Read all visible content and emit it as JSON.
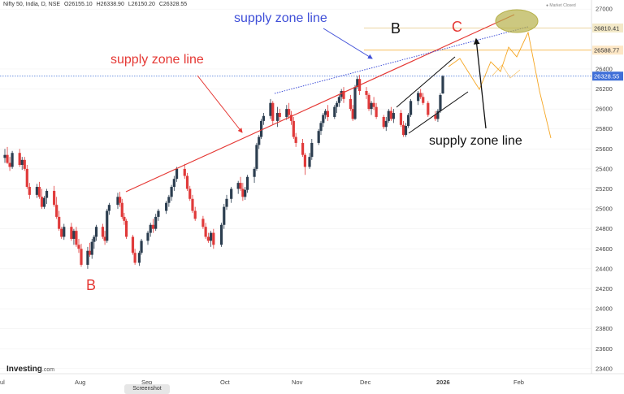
{
  "header": {
    "symbol": "Nifty 50, India, D, NSE",
    "open": "O26155.10",
    "high": "H26338.90",
    "low": "L26150.20",
    "close": "C26328.55"
  },
  "market_status": "Market Closed",
  "branding": {
    "logo": "Investing",
    "logo_suffix": ".com"
  },
  "screenshot_label": "Screenshot",
  "colors": {
    "up": "#2c3e50",
    "down": "#e03a3a",
    "red_line": "#e53935",
    "blue_dots": "#3f4fd8",
    "orange": "#f5a623",
    "arrow_black": "#111111",
    "ellipse": "#b6b04a",
    "grid": "#eeeeee"
  },
  "annotations": {
    "supply_top": "supply zone line",
    "supply_mid": "supply zone line",
    "supply_right": "supply zone line",
    "label_b_left": "B",
    "label_b_top": "B",
    "label_c": "C"
  },
  "chart_data": {
    "type": "candlestick",
    "x_labels": [
      "ul",
      "Aug",
      "Sep",
      "Oct",
      "Nov",
      "Dec",
      "2026",
      "Feb"
    ],
    "y_ticks": [
      23400,
      23600,
      23800,
      24000,
      24200,
      24400,
      24600,
      24800,
      25000,
      25200,
      25400,
      25600,
      25800,
      26000,
      26200,
      26400,
      27000
    ],
    "ylim": [
      23350,
      27050
    ],
    "price_tags": [
      {
        "label": "26810.41",
        "value": 26810.41,
        "style": "light"
      },
      {
        "label": "26588.77",
        "value": 26588.77,
        "style": "orange"
      },
      {
        "label": "26328.55",
        "value": 26328.55,
        "style": "blue"
      }
    ],
    "candles": [
      {
        "date": "Jul-01",
        "o": 25510,
        "h": 25600,
        "l": 25460,
        "c": 25540
      },
      {
        "date": "Jul-02",
        "o": 25540,
        "h": 25620,
        "l": 25450,
        "c": 25460
      },
      {
        "date": "Jul-03",
        "o": 25460,
        "h": 25520,
        "l": 25380,
        "c": 25420
      },
      {
        "date": "Jul-04",
        "o": 25420,
        "h": 25580,
        "l": 25400,
        "c": 25560
      },
      {
        "date": "Jul-07",
        "o": 25560,
        "h": 25600,
        "l": 25420,
        "c": 25440
      },
      {
        "date": "Jul-08",
        "o": 25440,
        "h": 25520,
        "l": 25390,
        "c": 25490
      },
      {
        "date": "Jul-09",
        "o": 25490,
        "h": 25520,
        "l": 25380,
        "c": 25400
      },
      {
        "date": "Jul-10",
        "o": 25400,
        "h": 25440,
        "l": 25200,
        "c": 25220
      },
      {
        "date": "Jul-11",
        "o": 25220,
        "h": 25260,
        "l": 25100,
        "c": 25140
      },
      {
        "date": "Jul-14",
        "o": 25140,
        "h": 25250,
        "l": 25110,
        "c": 25220
      },
      {
        "date": "Jul-15",
        "o": 25220,
        "h": 25270,
        "l": 25100,
        "c": 25120
      },
      {
        "date": "Jul-16",
        "o": 25120,
        "h": 25200,
        "l": 25000,
        "c": 25020
      },
      {
        "date": "Jul-17",
        "o": 25020,
        "h": 25130,
        "l": 25000,
        "c": 25110
      },
      {
        "date": "Jul-18",
        "o": 25110,
        "h": 25200,
        "l": 25050,
        "c": 25180
      },
      {
        "date": "Jul-21",
        "o": 25180,
        "h": 25230,
        "l": 25020,
        "c": 25040
      },
      {
        "date": "Jul-22",
        "o": 25040,
        "h": 25120,
        "l": 24900,
        "c": 24920
      },
      {
        "date": "Jul-23",
        "o": 24920,
        "h": 24980,
        "l": 24780,
        "c": 24800
      },
      {
        "date": "Jul-24",
        "o": 24800,
        "h": 24820,
        "l": 24700,
        "c": 24720
      },
      {
        "date": "Jul-25",
        "o": 24720,
        "h": 24850,
        "l": 24690,
        "c": 24820
      },
      {
        "date": "Jul-28",
        "o": 24820,
        "h": 24860,
        "l": 24680,
        "c": 24700
      },
      {
        "date": "Jul-29",
        "o": 24700,
        "h": 24800,
        "l": 24640,
        "c": 24780
      },
      {
        "date": "Jul-30",
        "o": 24780,
        "h": 24820,
        "l": 24620,
        "c": 24640
      },
      {
        "date": "Jul-31",
        "o": 24640,
        "h": 24700,
        "l": 24560,
        "c": 24600
      },
      {
        "date": "Aug-01",
        "o": 24600,
        "h": 24650,
        "l": 24420,
        "c": 24440
      },
      {
        "date": "Aug-04",
        "o": 24440,
        "h": 24620,
        "l": 24400,
        "c": 24580
      },
      {
        "date": "Aug-05",
        "o": 24580,
        "h": 24660,
        "l": 24520,
        "c": 24540
      },
      {
        "date": "Aug-06",
        "o": 24540,
        "h": 24700,
        "l": 24500,
        "c": 24670
      },
      {
        "date": "Aug-07",
        "o": 24670,
        "h": 24740,
        "l": 24600,
        "c": 24720
      },
      {
        "date": "Aug-08",
        "o": 24720,
        "h": 24840,
        "l": 24680,
        "c": 24820
      },
      {
        "date": "Aug-11",
        "o": 24820,
        "h": 24850,
        "l": 24700,
        "c": 24720
      },
      {
        "date": "Aug-12",
        "o": 24720,
        "h": 24780,
        "l": 24640,
        "c": 24680
      },
      {
        "date": "Aug-13",
        "o": 24680,
        "h": 25000,
        "l": 24660,
        "c": 24980
      },
      {
        "date": "Aug-14",
        "o": 24980,
        "h": 25060,
        "l": 24940,
        "c": 25040
      },
      {
        "date": "Aug-18",
        "o": 25040,
        "h": 25160,
        "l": 25000,
        "c": 25120
      },
      {
        "date": "Aug-19",
        "o": 25120,
        "h": 25170,
        "l": 25020,
        "c": 25060
      },
      {
        "date": "Aug-20",
        "o": 25060,
        "h": 25100,
        "l": 24900,
        "c": 24920
      },
      {
        "date": "Aug-21",
        "o": 24920,
        "h": 24960,
        "l": 24840,
        "c": 24880
      },
      {
        "date": "Aug-22",
        "o": 24880,
        "h": 24900,
        "l": 24700,
        "c": 24720
      },
      {
        "date": "Aug-25",
        "o": 24720,
        "h": 24740,
        "l": 24540,
        "c": 24560
      },
      {
        "date": "Aug-26",
        "o": 24560,
        "h": 24600,
        "l": 24440,
        "c": 24460
      },
      {
        "date": "Aug-28",
        "o": 24460,
        "h": 24580,
        "l": 24430,
        "c": 24560
      },
      {
        "date": "Aug-29",
        "o": 24560,
        "h": 24700,
        "l": 24540,
        "c": 24680
      },
      {
        "date": "Sep-01",
        "o": 24680,
        "h": 24780,
        "l": 24640,
        "c": 24760
      },
      {
        "date": "Sep-02",
        "o": 24760,
        "h": 24860,
        "l": 24720,
        "c": 24840
      },
      {
        "date": "Sep-03",
        "o": 24840,
        "h": 24900,
        "l": 24760,
        "c": 24800
      },
      {
        "date": "Sep-04",
        "o": 24800,
        "h": 24950,
        "l": 24780,
        "c": 24920
      },
      {
        "date": "Sep-05",
        "o": 24920,
        "h": 25000,
        "l": 24880,
        "c": 24980
      },
      {
        "date": "Sep-08",
        "o": 24980,
        "h": 25080,
        "l": 24950,
        "c": 25060
      },
      {
        "date": "Sep-09",
        "o": 25060,
        "h": 25140,
        "l": 25020,
        "c": 25120
      },
      {
        "date": "Sep-10",
        "o": 25120,
        "h": 25240,
        "l": 25080,
        "c": 25220
      },
      {
        "date": "Sep-11",
        "o": 25220,
        "h": 25330,
        "l": 25180,
        "c": 25300
      },
      {
        "date": "Sep-12",
        "o": 25300,
        "h": 25420,
        "l": 25270,
        "c": 25400
      },
      {
        "date": "Sep-15",
        "o": 25400,
        "h": 25450,
        "l": 25300,
        "c": 25330
      },
      {
        "date": "Sep-16",
        "o": 25330,
        "h": 25360,
        "l": 25180,
        "c": 25200
      },
      {
        "date": "Sep-17",
        "o": 25200,
        "h": 25230,
        "l": 25080,
        "c": 25100
      },
      {
        "date": "Sep-18",
        "o": 25100,
        "h": 25140,
        "l": 24960,
        "c": 24980
      },
      {
        "date": "Sep-19",
        "o": 24980,
        "h": 25020,
        "l": 24880,
        "c": 24900
      },
      {
        "date": "Sep-22",
        "o": 24900,
        "h": 24930,
        "l": 24800,
        "c": 24820
      },
      {
        "date": "Sep-23",
        "o": 24820,
        "h": 24860,
        "l": 24700,
        "c": 24720
      },
      {
        "date": "Sep-24",
        "o": 24720,
        "h": 24760,
        "l": 24660,
        "c": 24680
      },
      {
        "date": "Sep-25",
        "o": 24680,
        "h": 24780,
        "l": 24620,
        "c": 24760
      },
      {
        "date": "Sep-26",
        "o": 24760,
        "h": 24800,
        "l": 24600,
        "c": 24640
      },
      {
        "date": "Sep-29",
        "o": 24640,
        "h": 24860,
        "l": 24620,
        "c": 24840
      },
      {
        "date": "Sep-30",
        "o": 24840,
        "h": 25050,
        "l": 24800,
        "c": 25020
      },
      {
        "date": "Oct-01",
        "o": 25020,
        "h": 25140,
        "l": 24990,
        "c": 25100
      },
      {
        "date": "Oct-03",
        "o": 25100,
        "h": 25220,
        "l": 25060,
        "c": 25200
      },
      {
        "date": "Oct-06",
        "o": 25200,
        "h": 25280,
        "l": 25150,
        "c": 25260
      },
      {
        "date": "Oct-07",
        "o": 25260,
        "h": 25320,
        "l": 25180,
        "c": 25200
      },
      {
        "date": "Oct-08",
        "o": 25200,
        "h": 25260,
        "l": 25080,
        "c": 25120
      },
      {
        "date": "Oct-09",
        "o": 25120,
        "h": 25220,
        "l": 25090,
        "c": 25190
      },
      {
        "date": "Oct-10",
        "o": 25190,
        "h": 25340,
        "l": 25160,
        "c": 25320
      },
      {
        "date": "Oct-13",
        "o": 25320,
        "h": 25420,
        "l": 25260,
        "c": 25400
      },
      {
        "date": "Oct-14",
        "o": 25400,
        "h": 25660,
        "l": 25380,
        "c": 25640
      },
      {
        "date": "Oct-15",
        "o": 25640,
        "h": 25740,
        "l": 25600,
        "c": 25720
      },
      {
        "date": "Oct-16",
        "o": 25720,
        "h": 25900,
        "l": 25700,
        "c": 25880
      },
      {
        "date": "Oct-17",
        "o": 25880,
        "h": 25960,
        "l": 25840,
        "c": 25930
      },
      {
        "date": "Oct-20",
        "o": 25930,
        "h": 26100,
        "l": 25900,
        "c": 26060
      },
      {
        "date": "Oct-21",
        "o": 26060,
        "h": 26080,
        "l": 25840,
        "c": 25880
      },
      {
        "date": "Oct-23",
        "o": 25880,
        "h": 26020,
        "l": 25820,
        "c": 25960
      },
      {
        "date": "Oct-24",
        "o": 25960,
        "h": 26000,
        "l": 25880,
        "c": 25920
      },
      {
        "date": "Oct-27",
        "o": 25920,
        "h": 26040,
        "l": 25890,
        "c": 26000
      },
      {
        "date": "Oct-28",
        "o": 26000,
        "h": 26060,
        "l": 25900,
        "c": 25940
      },
      {
        "date": "Oct-29",
        "o": 25940,
        "h": 25980,
        "l": 25840,
        "c": 25880
      },
      {
        "date": "Oct-30",
        "o": 25880,
        "h": 25920,
        "l": 25700,
        "c": 25720
      },
      {
        "date": "Oct-31",
        "o": 25720,
        "h": 25760,
        "l": 25620,
        "c": 25660
      },
      {
        "date": "Nov-03",
        "o": 25660,
        "h": 25700,
        "l": 25520,
        "c": 25540
      },
      {
        "date": "Nov-04",
        "o": 25540,
        "h": 25560,
        "l": 25340,
        "c": 25420
      },
      {
        "date": "Nov-06",
        "o": 25420,
        "h": 25560,
        "l": 25400,
        "c": 25520
      },
      {
        "date": "Nov-07",
        "o": 25520,
        "h": 25700,
        "l": 25490,
        "c": 25660
      },
      {
        "date": "Nov-10",
        "o": 25660,
        "h": 25800,
        "l": 25640,
        "c": 25780
      },
      {
        "date": "Nov-11",
        "o": 25780,
        "h": 25880,
        "l": 25740,
        "c": 25860
      },
      {
        "date": "Nov-12",
        "o": 25860,
        "h": 25960,
        "l": 25820,
        "c": 25940
      },
      {
        "date": "Nov-13",
        "o": 25940,
        "h": 26000,
        "l": 25900,
        "c": 25980
      },
      {
        "date": "Nov-14",
        "o": 25980,
        "h": 26040,
        "l": 25880,
        "c": 25920
      },
      {
        "date": "Nov-17",
        "o": 25920,
        "h": 26040,
        "l": 25900,
        "c": 26020
      },
      {
        "date": "Nov-18",
        "o": 26020,
        "h": 26080,
        "l": 25960,
        "c": 26060
      },
      {
        "date": "Nov-19",
        "o": 26060,
        "h": 26140,
        "l": 26020,
        "c": 26120
      },
      {
        "date": "Nov-20",
        "o": 26120,
        "h": 26200,
        "l": 26080,
        "c": 26180
      },
      {
        "date": "Nov-21",
        "o": 26180,
        "h": 26220,
        "l": 26060,
        "c": 26100
      },
      {
        "date": "Nov-24",
        "o": 26100,
        "h": 26140,
        "l": 25980,
        "c": 26000
      },
      {
        "date": "Nov-25",
        "o": 26000,
        "h": 26040,
        "l": 25880,
        "c": 25900
      },
      {
        "date": "Nov-26",
        "o": 25900,
        "h": 26240,
        "l": 25890,
        "c": 26220
      },
      {
        "date": "Nov-27",
        "o": 26220,
        "h": 26330,
        "l": 26200,
        "c": 26300
      },
      {
        "date": "Nov-28",
        "o": 26300,
        "h": 26340,
        "l": 26140,
        "c": 26180
      },
      {
        "date": "Dec-01",
        "o": 26180,
        "h": 26220,
        "l": 26100,
        "c": 26140
      },
      {
        "date": "Dec-02",
        "o": 26140,
        "h": 26160,
        "l": 25980,
        "c": 26000
      },
      {
        "date": "Dec-03",
        "o": 26000,
        "h": 26080,
        "l": 25940,
        "c": 26060
      },
      {
        "date": "Dec-04",
        "o": 26060,
        "h": 26120,
        "l": 25990,
        "c": 26020
      },
      {
        "date": "Dec-05",
        "o": 26020,
        "h": 26060,
        "l": 25900,
        "c": 25920
      },
      {
        "date": "Dec-08",
        "o": 25920,
        "h": 25940,
        "l": 25800,
        "c": 25820
      },
      {
        "date": "Dec-09",
        "o": 25820,
        "h": 25920,
        "l": 25780,
        "c": 25880
      },
      {
        "date": "Dec-10",
        "o": 25880,
        "h": 26000,
        "l": 25860,
        "c": 25980
      },
      {
        "date": "Dec-11",
        "o": 25980,
        "h": 26020,
        "l": 25880,
        "c": 25900
      },
      {
        "date": "Dec-12",
        "o": 25900,
        "h": 26000,
        "l": 25860,
        "c": 25960
      },
      {
        "date": "Dec-15",
        "o": 25960,
        "h": 25990,
        "l": 25820,
        "c": 25840
      },
      {
        "date": "Dec-16",
        "o": 25840,
        "h": 25880,
        "l": 25720,
        "c": 25740
      },
      {
        "date": "Dec-17",
        "o": 25740,
        "h": 25860,
        "l": 25720,
        "c": 25830
      },
      {
        "date": "Dec-18",
        "o": 25830,
        "h": 25960,
        "l": 25810,
        "c": 25940
      },
      {
        "date": "Dec-19",
        "o": 25940,
        "h": 26100,
        "l": 25920,
        "c": 26080
      },
      {
        "date": "Dec-22",
        "o": 26080,
        "h": 26180,
        "l": 26040,
        "c": 26160
      },
      {
        "date": "Dec-23",
        "o": 26160,
        "h": 26200,
        "l": 26100,
        "c": 26120
      },
      {
        "date": "Dec-24",
        "o": 26120,
        "h": 26160,
        "l": 26040,
        "c": 26060
      },
      {
        "date": "Dec-26",
        "o": 26060,
        "h": 26080,
        "l": 25920,
        "c": 25940
      },
      {
        "date": "Dec-29",
        "o": 25940,
        "h": 25980,
        "l": 25880,
        "c": 25900
      },
      {
        "date": "Dec-30",
        "o": 25900,
        "h": 26000,
        "l": 25870,
        "c": 25980
      },
      {
        "date": "Dec-31",
        "o": 25980,
        "h": 26160,
        "l": 25960,
        "c": 26140
      },
      {
        "date": "Jan-01",
        "o": 26155.1,
        "h": 26338.9,
        "l": 26150.2,
        "c": 26328.55
      }
    ]
  }
}
